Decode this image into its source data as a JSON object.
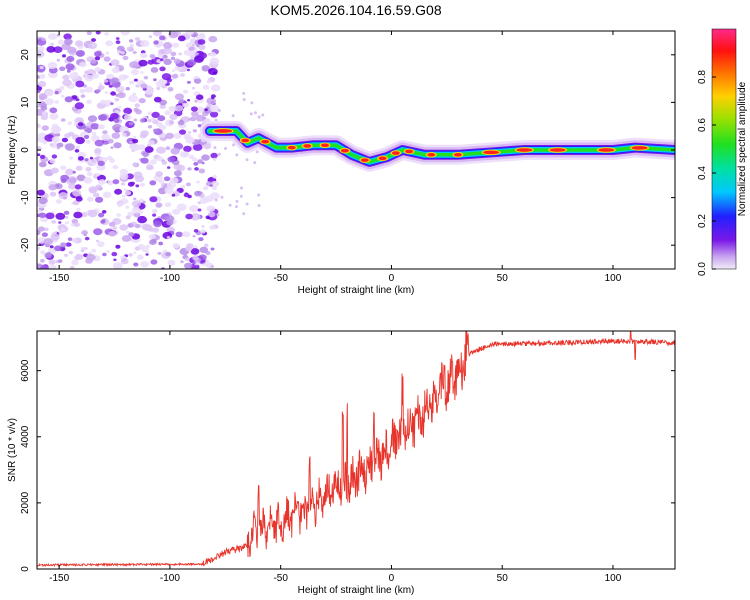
{
  "title": "KOM5.2026.104.16.59.G08",
  "colorbar": {
    "label": "Normalized spectral amplitude",
    "range": [
      0,
      1
    ],
    "ticks": [
      "0.0",
      "0.2",
      "0.4",
      "0.6",
      "0.8"
    ]
  },
  "chart_data": [
    {
      "type": "heatmap",
      "name": "spectrogram",
      "xlabel": "Height of straight line (km)",
      "ylabel": "Frequency (Hz)",
      "xlim": [
        -160,
        128
      ],
      "ylim": [
        -25,
        25
      ],
      "xticks": [
        -150,
        -100,
        -50,
        0,
        50,
        100
      ],
      "yticks": [
        -20,
        -10,
        0,
        10,
        20
      ],
      "noise_region_x": [
        -160,
        -82
      ],
      "carrier_track": [
        {
          "x": -82,
          "f": 4
        },
        {
          "x": -70,
          "f": 4
        },
        {
          "x": -65,
          "f": 1.5
        },
        {
          "x": -60,
          "f": 2.5
        },
        {
          "x": -52,
          "f": 0.5
        },
        {
          "x": -45,
          "f": 0.5
        },
        {
          "x": -35,
          "f": 1
        },
        {
          "x": -25,
          "f": 1
        },
        {
          "x": -18,
          "f": -1
        },
        {
          "x": -10,
          "f": -2.5
        },
        {
          "x": -2,
          "f": -1.5
        },
        {
          "x": 5,
          "f": 0
        },
        {
          "x": 15,
          "f": -1
        },
        {
          "x": 30,
          "f": -1
        },
        {
          "x": 60,
          "f": 0
        },
        {
          "x": 100,
          "f": 0
        },
        {
          "x": 110,
          "f": 0.5
        },
        {
          "x": 128,
          "f": 0
        }
      ],
      "colorbar_label": "Normalized spectral amplitude"
    },
    {
      "type": "line",
      "name": "snr",
      "xlabel": "Height of straight line (km)",
      "ylabel": "SNR (10 * v/v)",
      "xlim": [
        -160,
        128
      ],
      "ylim": [
        0,
        7200
      ],
      "xticks": [
        -150,
        -100,
        -50,
        0,
        50,
        100
      ],
      "yticks": [
        0,
        2000,
        4000,
        6000
      ],
      "color": "#e8332a",
      "trend": [
        {
          "x": -160,
          "y": 120
        },
        {
          "x": -85,
          "y": 150
        },
        {
          "x": -75,
          "y": 500
        },
        {
          "x": -65,
          "y": 700
        },
        {
          "x": -62,
          "y": 1100
        },
        {
          "x": -55,
          "y": 1200
        },
        {
          "x": -45,
          "y": 1500
        },
        {
          "x": -35,
          "y": 1900
        },
        {
          "x": -25,
          "y": 2400
        },
        {
          "x": -15,
          "y": 2800
        },
        {
          "x": -5,
          "y": 3400
        },
        {
          "x": 5,
          "y": 4000
        },
        {
          "x": 15,
          "y": 4700
        },
        {
          "x": 25,
          "y": 5600
        },
        {
          "x": 35,
          "y": 6500
        },
        {
          "x": 45,
          "y": 6800
        },
        {
          "x": 80,
          "y": 6850
        },
        {
          "x": 100,
          "y": 6900
        },
        {
          "x": 128,
          "y": 6850
        }
      ],
      "peaks": [
        {
          "x": -60,
          "y": 2300
        },
        {
          "x": -42,
          "y": 2600
        },
        {
          "x": -37,
          "y": 3200
        },
        {
          "x": -22,
          "y": 4500
        },
        {
          "x": -20,
          "y": 4800
        },
        {
          "x": -8,
          "y": 4600
        },
        {
          "x": 5,
          "y": 5100
        },
        {
          "x": 108,
          "y": 7200
        },
        {
          "x": 110,
          "y": 6300
        }
      ]
    }
  ]
}
